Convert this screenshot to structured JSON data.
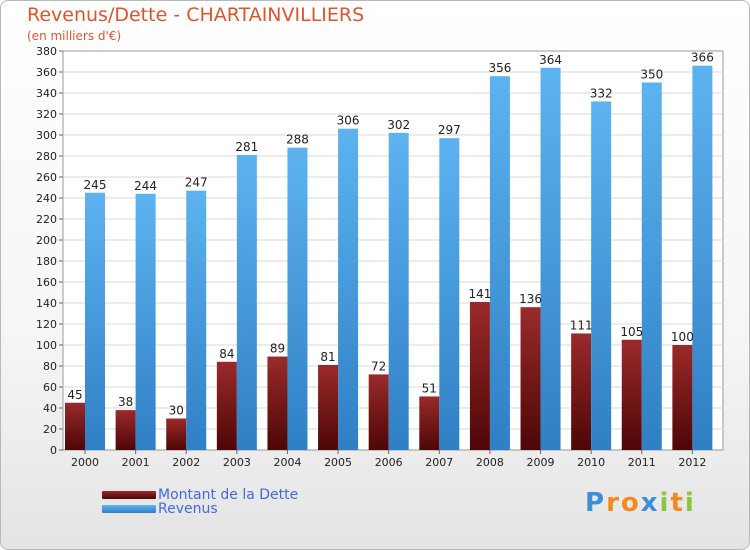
{
  "chart_data": {
    "type": "bar",
    "title": "Revenus/Dette - CHARTAINVILLIERS",
    "subtitle": "(en milliers d'€)",
    "categories": [
      "2000",
      "2001",
      "2002",
      "2003",
      "2004",
      "2005",
      "2006",
      "2007",
      "2008",
      "2009",
      "2010",
      "2011",
      "2012"
    ],
    "series": [
      {
        "name": "Montant de la Dette",
        "color": "#7a1414",
        "values": [
          45,
          38,
          30,
          84,
          89,
          81,
          72,
          51,
          141,
          136,
          111,
          105,
          100
        ]
      },
      {
        "name": "Revenus",
        "color": "#4aa3e8",
        "values": [
          245,
          244,
          247,
          281,
          288,
          306,
          302,
          297,
          356,
          364,
          332,
          350,
          366
        ]
      }
    ],
    "ylim": [
      0,
      380
    ],
    "ytick_step": 20,
    "grid": true,
    "legend_position": "bottom-left"
  },
  "logo": {
    "letters": [
      "P",
      "r",
      "o",
      "x",
      "i",
      "t",
      "i"
    ],
    "colors": [
      "#3a8fd8",
      "#f08a24",
      "#f08a24",
      "#3a8fd8",
      "#8cc63f",
      "#f08a24",
      "#8cc63f"
    ]
  }
}
